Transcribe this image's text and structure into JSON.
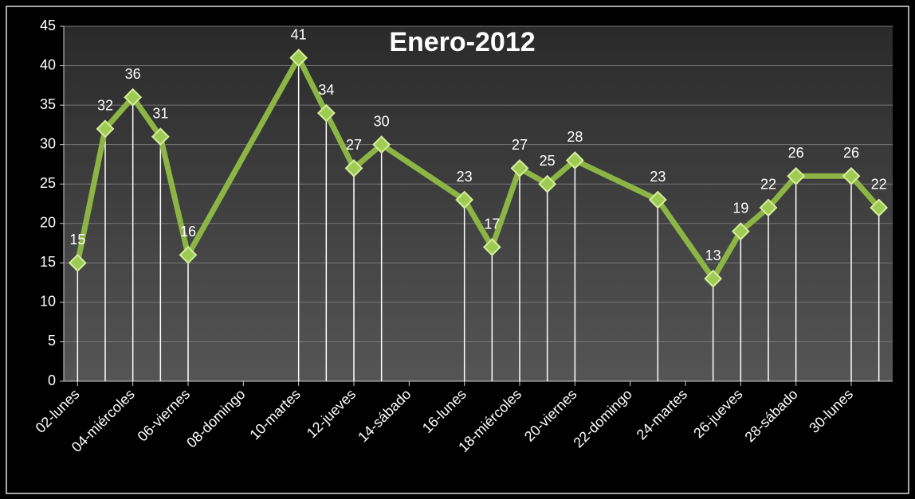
{
  "chart_data": {
    "type": "line",
    "title": "Enero-2012",
    "x": [
      2,
      3,
      4,
      5,
      6,
      10,
      11,
      12,
      13,
      16,
      17,
      18,
      19,
      20,
      23,
      25,
      26,
      27,
      28,
      30,
      31
    ],
    "values": [
      15,
      32,
      36,
      31,
      16,
      41,
      34,
      27,
      30,
      23,
      17,
      27,
      25,
      28,
      23,
      13,
      19,
      22,
      26,
      26,
      22
    ],
    "color": "#8db545",
    "xlim": [
      1.5,
      31.5
    ],
    "xticks": [
      {
        "value": 2,
        "label": "02-lunes"
      },
      {
        "value": 4,
        "label": "04-miércoles"
      },
      {
        "value": 6,
        "label": "06-viernes"
      },
      {
        "value": 8,
        "label": "08-domingo"
      },
      {
        "value": 10,
        "label": "10-martes"
      },
      {
        "value": 12,
        "label": "12-jueves"
      },
      {
        "value": 14,
        "label": "14-sábado"
      },
      {
        "value": 16,
        "label": "16-lunes"
      },
      {
        "value": 18,
        "label": "18-miércoles"
      },
      {
        "value": 20,
        "label": "20-viernes"
      },
      {
        "value": 22,
        "label": "22-domingo"
      },
      {
        "value": 24,
        "label": "24-martes"
      },
      {
        "value": 26,
        "label": "26-jueves"
      },
      {
        "value": 28,
        "label": "28-sábado"
      },
      {
        "value": 30,
        "label": "30-lunes"
      }
    ],
    "ylim": [
      0,
      45
    ],
    "yticks": [
      0,
      5,
      10,
      15,
      20,
      25,
      30,
      35,
      40,
      45
    ],
    "grid": true,
    "drop_lines": true
  }
}
